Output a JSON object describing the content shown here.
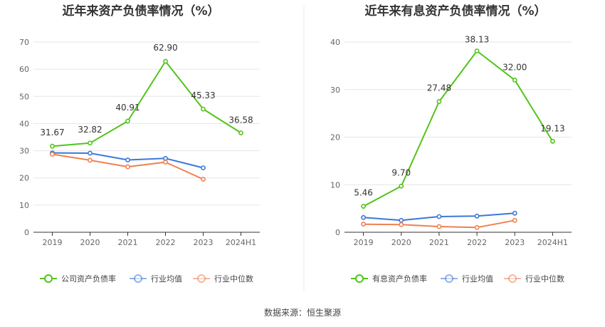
{
  "colors": {
    "company": "#52c41a",
    "industry_avg": "#3c78d8",
    "industry_median": "#f08050",
    "grid": "#e6e6e6",
    "axis": "#333333",
    "divider": "#e8e8e8"
  },
  "footer": {
    "source": "数据来源：恒生聚源"
  },
  "chart_data": [
    {
      "type": "line",
      "title": "近年来资产负债率情况（%）",
      "categories": [
        "2019",
        "2020",
        "2021",
        "2022",
        "2023",
        "2024H1"
      ],
      "ylim": [
        0,
        70
      ],
      "yticks": [
        0,
        10,
        20,
        30,
        40,
        50,
        60,
        70
      ],
      "grid": true,
      "legend_position": "bottom",
      "series": [
        {
          "name": "公司资产负债率",
          "role": "company",
          "values": [
            31.67,
            32.82,
            40.91,
            62.9,
            45.33,
            36.58
          ],
          "labels": [
            "31.67",
            "32.82",
            "40.91",
            "62.90",
            "45.33",
            "36.58"
          ]
        },
        {
          "name": "行业均值",
          "role": "industry_avg",
          "values": [
            29.2,
            29.1,
            26.6,
            27.2,
            23.7,
            null
          ]
        },
        {
          "name": "行业中位数",
          "role": "industry_median",
          "values": [
            28.7,
            26.5,
            24.1,
            25.8,
            19.5,
            null
          ]
        }
      ]
    },
    {
      "type": "line",
      "title": "近年来有息资产负债率情况（%）",
      "categories": [
        "2019",
        "2020",
        "2021",
        "2022",
        "2023",
        "2024H1"
      ],
      "ylim": [
        0,
        40
      ],
      "yticks": [
        0,
        10,
        20,
        30,
        40
      ],
      "grid": true,
      "legend_position": "bottom",
      "series": [
        {
          "name": "有息资产负债率",
          "role": "company",
          "values": [
            5.46,
            9.7,
            27.48,
            38.13,
            32.0,
            19.13
          ],
          "labels": [
            "5.46",
            "9.70",
            "27.48",
            "38.13",
            "32.00",
            "19.13"
          ]
        },
        {
          "name": "行业均值",
          "role": "industry_avg",
          "values": [
            3.1,
            2.5,
            3.3,
            3.4,
            4.0,
            null
          ]
        },
        {
          "name": "行业中位数",
          "role": "industry_median",
          "values": [
            1.7,
            1.6,
            1.2,
            1.0,
            2.5,
            null
          ]
        }
      ]
    }
  ]
}
